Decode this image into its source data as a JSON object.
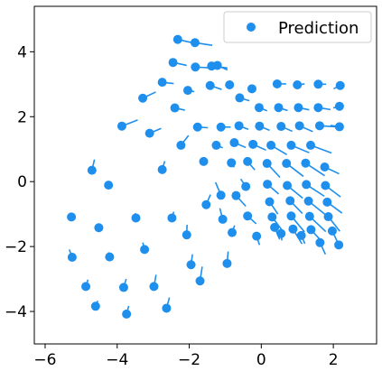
{
  "chart_data": {
    "type": "scatter",
    "title": "",
    "xlabel": "",
    "ylabel": "",
    "xlim": [
      -6.3,
      3.2
    ],
    "ylim": [
      -5.0,
      5.4
    ],
    "xticks": [
      -6,
      -4,
      -2,
      0,
      2
    ],
    "yticks": [
      -4,
      -2,
      0,
      2,
      4
    ],
    "xtick_labels": [
      "−6",
      "−4",
      "−2",
      "0",
      "2"
    ],
    "ytick_labels": [
      "−4",
      "−2",
      "0",
      "2",
      "4"
    ],
    "grid": false,
    "legend": {
      "position": "top-right",
      "entries": [
        "Prediction"
      ]
    },
    "color": "#1f8fee",
    "series": [
      {
        "name": "Prediction",
        "points": [
          [
            -2.32,
            4.38,
            0.36,
            -0.09
          ],
          [
            -1.84,
            4.28,
            0.48,
            -0.08
          ],
          [
            -2.45,
            3.67,
            0.38,
            -0.09
          ],
          [
            -1.83,
            3.53,
            0.46,
            -0.03
          ],
          [
            -1.38,
            3.56,
            0.44,
            -0.06
          ],
          [
            -1.22,
            3.58,
            0.28,
            -0.14
          ],
          [
            -2.75,
            3.06,
            0.32,
            -0.04
          ],
          [
            -2.04,
            2.81,
            0.18,
            -0.04
          ],
          [
            -1.42,
            2.96,
            0.32,
            -0.12
          ],
          [
            -0.88,
            2.98,
            0.0,
            -0.05
          ],
          [
            -0.26,
            2.86,
            0.02,
            -0.04
          ],
          [
            0.44,
            3.01,
            0.25,
            0.0
          ],
          [
            1.0,
            2.98,
            0.2,
            0.03
          ],
          [
            1.58,
            3.0,
            0.22,
            0.0
          ],
          [
            2.19,
            2.96,
            -0.18,
            -0.1
          ],
          [
            -3.29,
            2.57,
            0.36,
            0.19
          ],
          [
            -2.4,
            2.27,
            0.28,
            -0.07
          ],
          [
            -0.6,
            2.58,
            0.27,
            -0.09
          ],
          [
            -0.06,
            2.28,
            0.22,
            -0.1
          ],
          [
            0.48,
            2.28,
            0.25,
            -0.09
          ],
          [
            1.03,
            2.28,
            0.3,
            -0.07
          ],
          [
            1.58,
            2.28,
            0.34,
            -0.06
          ],
          [
            2.17,
            2.32,
            -0.17,
            -0.05
          ],
          [
            -3.87,
            1.71,
            0.44,
            0.19
          ],
          [
            -3.1,
            1.49,
            0.32,
            0.15
          ],
          [
            -1.77,
            1.68,
            0.29,
            -0.02
          ],
          [
            -1.12,
            1.68,
            0.27,
            0.0
          ],
          [
            -0.62,
            1.72,
            0.26,
            -0.11
          ],
          [
            -0.05,
            1.71,
            0.28,
            -0.13
          ],
          [
            0.55,
            1.7,
            0.31,
            -0.15
          ],
          [
            1.06,
            1.72,
            0.37,
            -0.18
          ],
          [
            1.62,
            1.72,
            0.44,
            -0.03
          ],
          [
            2.17,
            1.69,
            -0.25,
            0.04
          ],
          [
            -2.23,
            1.12,
            0.21,
            0.3
          ],
          [
            -1.25,
            1.12,
            0.18,
            -0.08
          ],
          [
            -0.75,
            1.2,
            0.32,
            -0.15
          ],
          [
            -0.23,
            1.15,
            0.36,
            -0.18
          ],
          [
            0.27,
            1.12,
            0.44,
            -0.29
          ],
          [
            0.83,
            1.12,
            0.5,
            -0.23
          ],
          [
            1.37,
            1.12,
            0.58,
            -0.24
          ],
          [
            -4.7,
            0.35,
            0.07,
            0.33
          ],
          [
            -2.75,
            0.37,
            0.07,
            0.26
          ],
          [
            -1.6,
            0.62,
            0.03,
            -0.04
          ],
          [
            -0.83,
            0.58,
            0.08,
            -0.14
          ],
          [
            -0.38,
            0.62,
            0.2,
            -0.26
          ],
          [
            0.16,
            0.56,
            0.36,
            -0.43
          ],
          [
            0.7,
            0.56,
            0.47,
            -0.4
          ],
          [
            1.23,
            0.57,
            0.53,
            -0.39
          ],
          [
            1.76,
            0.45,
            0.4,
            -0.21
          ],
          [
            -4.24,
            -0.11,
            0.0,
            0.0
          ],
          [
            -0.43,
            -0.15,
            -0.14,
            0.23
          ],
          [
            0.17,
            -0.08,
            0.31,
            -0.3
          ],
          [
            0.72,
            -0.12,
            0.43,
            -0.39
          ],
          [
            1.25,
            -0.09,
            0.5,
            -0.36
          ],
          [
            1.78,
            -0.12,
            0.42,
            -0.35
          ],
          [
            -1.12,
            -0.42,
            -0.15,
            0.4
          ],
          [
            -0.7,
            -0.43,
            0.27,
            -0.33
          ],
          [
            0.23,
            -0.62,
            0.23,
            -0.38
          ],
          [
            0.8,
            -0.59,
            0.34,
            -0.39
          ],
          [
            1.31,
            -0.6,
            0.46,
            -0.41
          ],
          [
            1.83,
            -0.63,
            0.41,
            -0.34
          ],
          [
            -1.53,
            -0.71,
            0.12,
            0.31
          ],
          [
            -0.38,
            -1.06,
            0.24,
            -0.24
          ],
          [
            0.3,
            -1.09,
            0.27,
            -0.4
          ],
          [
            0.83,
            -1.06,
            0.37,
            -0.49
          ],
          [
            1.34,
            -1.07,
            0.45,
            -0.47
          ],
          [
            1.86,
            -1.08,
            0.32,
            -0.45
          ],
          [
            -5.27,
            -1.09,
            0.02,
            0.1
          ],
          [
            -3.48,
            -1.12,
            -0.02,
            0.15
          ],
          [
            -2.48,
            -1.12,
            0.05,
            0.19
          ],
          [
            -1.07,
            -1.16,
            -0.08,
            0.34
          ],
          [
            0.37,
            -1.41,
            0.14,
            -0.37
          ],
          [
            0.88,
            -1.46,
            0.25,
            -0.46
          ],
          [
            1.38,
            -1.48,
            0.36,
            -0.44
          ],
          [
            1.97,
            -1.52,
            0.19,
            -0.45
          ],
          [
            -4.51,
            -1.42,
            0.0,
            0.12
          ],
          [
            -2.07,
            -1.64,
            0.01,
            0.31
          ],
          [
            -0.81,
            -1.57,
            0.07,
            0.22
          ],
          [
            -0.13,
            -1.68,
            0.08,
            -0.27
          ],
          [
            0.55,
            -1.6,
            0.02,
            -0.21
          ],
          [
            1.11,
            -1.66,
            0.1,
            -0.25
          ],
          [
            1.63,
            -1.88,
            0.15,
            -0.36
          ],
          [
            2.15,
            -1.95,
            -0.02,
            -0.01
          ],
          [
            -3.24,
            -2.09,
            -0.05,
            0.21
          ],
          [
            -4.21,
            -2.32,
            -0.03,
            0.14
          ],
          [
            -1.95,
            -2.56,
            0.04,
            0.32
          ],
          [
            -0.95,
            -2.52,
            0.03,
            0.37
          ],
          [
            -5.25,
            -2.33,
            -0.08,
            0.24
          ],
          [
            -4.87,
            -3.23,
            0.06,
            0.21
          ],
          [
            -3.82,
            -3.26,
            0.07,
            0.26
          ],
          [
            -2.98,
            -3.23,
            0.06,
            0.36
          ],
          [
            -1.7,
            -3.06,
            0.06,
            0.44
          ],
          [
            -4.6,
            -3.84,
            0.06,
            0.17
          ],
          [
            -3.74,
            -4.08,
            0.06,
            0.25
          ],
          [
            -2.63,
            -3.9,
            0.08,
            0.33
          ]
        ]
      }
    ]
  }
}
